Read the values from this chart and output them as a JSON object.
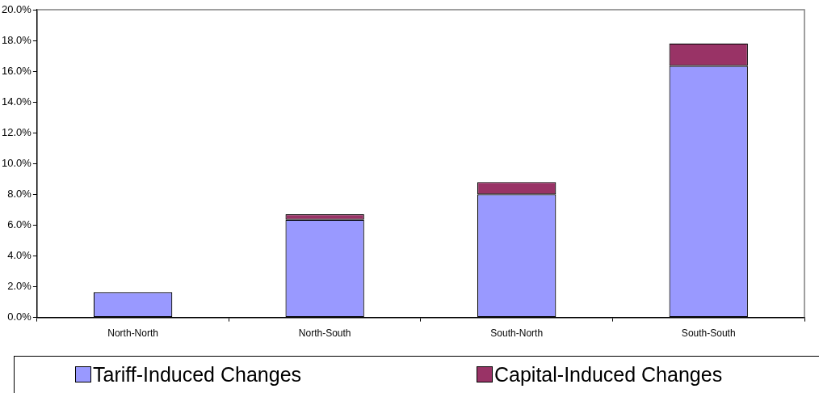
{
  "chart_data": {
    "type": "bar",
    "stacked": true,
    "categories": [
      "North-North",
      "North-South",
      "South-North",
      "South-South"
    ],
    "series": [
      {
        "name": "Tariff-Induced Changes",
        "color": "#9999ff",
        "values": [
          1.65,
          6.35,
          8.0,
          16.35
        ]
      },
      {
        "name": "Capital-Induced Changes",
        "color": "#993366",
        "values": [
          0,
          0.35,
          0.8,
          1.45
        ]
      }
    ],
    "ylim": [
      0,
      20
    ],
    "yticks": [
      {
        "value": 0,
        "label": "0.0%"
      },
      {
        "value": 2,
        "label": "2.0%"
      },
      {
        "value": 4,
        "label": "4.0%"
      },
      {
        "value": 6,
        "label": "6.0%"
      },
      {
        "value": 8,
        "label": "8.0%"
      },
      {
        "value": 10,
        "label": "10.0%"
      },
      {
        "value": 12,
        "label": "12.0%"
      },
      {
        "value": 14,
        "label": "14.0%"
      },
      {
        "value": 16,
        "label": "16.0%"
      },
      {
        "value": 18,
        "label": "18.0%"
      },
      {
        "value": 20,
        "label": "20.0%"
      }
    ],
    "grid": false,
    "legend": "bottom"
  }
}
